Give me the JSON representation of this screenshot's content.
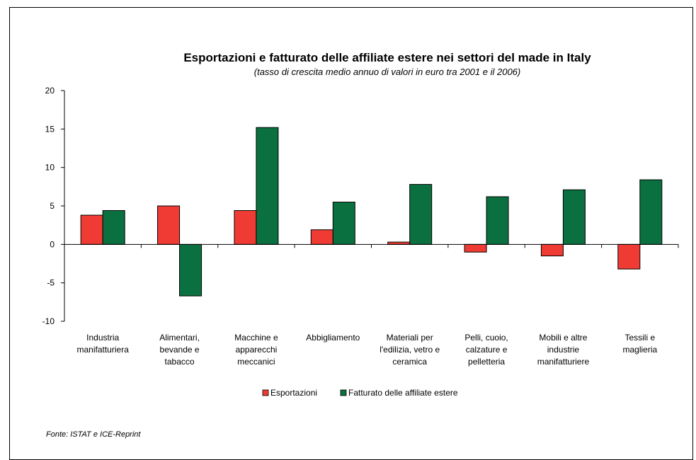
{
  "source": "Fonte:  ISTAT e ICE-Reprint",
  "chart_data": {
    "type": "bar",
    "title": "Esportazioni e fatturato delle affiliate estere nei settori del made in Italy",
    "subtitle": "(tasso di crescita medio annuo di valori in euro tra 2001 e il 2006)",
    "xlabel": "",
    "ylabel": "",
    "ylim": [
      -10,
      20
    ],
    "yticks": [
      20,
      15,
      10,
      5,
      0,
      -5,
      -10
    ],
    "categories": [
      [
        "Industria",
        "manifatturiera"
      ],
      [
        "Alimentari,",
        "bevande e",
        "tabacco"
      ],
      [
        "Macchine e",
        "apparecchi",
        "meccanici"
      ],
      [
        "Abbigliamento"
      ],
      [
        "Materiali per",
        "l'edilizia, vetro e",
        "ceramica"
      ],
      [
        "Pelli, cuoio,",
        "calzature e",
        "pelletteria"
      ],
      [
        "Mobili e altre",
        "industrie",
        "manifatturiere"
      ],
      [
        "Tessili e",
        "maglieria"
      ]
    ],
    "series": [
      {
        "name": "Esportazioni",
        "color": "#ef3b33",
        "values": [
          3.8,
          5.0,
          4.4,
          1.9,
          0.3,
          -1.0,
          -1.5,
          -3.2
        ]
      },
      {
        "name": "Fatturato delle affiliate estere",
        "color": "#0a7040",
        "values": [
          4.4,
          -6.7,
          15.2,
          5.5,
          7.8,
          6.2,
          7.1,
          8.4
        ]
      }
    ],
    "grid": false,
    "legend_position": "bottom"
  }
}
